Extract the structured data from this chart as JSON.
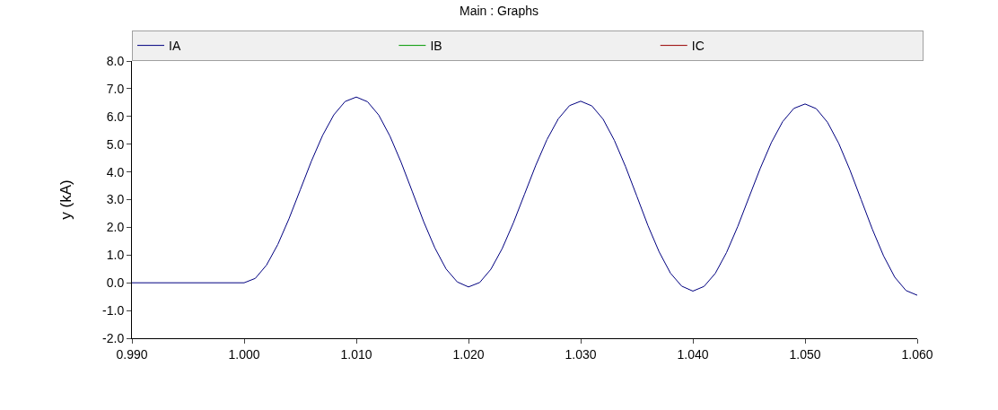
{
  "chart_data": {
    "type": "line",
    "title": "Main : Graphs",
    "ylabel": "y (kA)",
    "x": [
      0.99,
      1.0,
      1.001,
      1.002,
      1.003,
      1.004,
      1.005,
      1.006,
      1.007,
      1.008,
      1.009,
      1.01,
      1.011,
      1.012,
      1.013,
      1.014,
      1.015,
      1.016,
      1.017,
      1.018,
      1.019,
      1.02,
      1.021,
      1.022,
      1.023,
      1.024,
      1.025,
      1.026,
      1.027,
      1.028,
      1.029,
      1.03,
      1.031,
      1.032,
      1.033,
      1.034,
      1.035,
      1.036,
      1.037,
      1.038,
      1.039,
      1.04,
      1.041,
      1.042,
      1.043,
      1.044,
      1.045,
      1.046,
      1.047,
      1.048,
      1.049,
      1.05,
      1.051,
      1.052,
      1.053,
      1.054,
      1.055,
      1.056,
      1.057,
      1.058,
      1.059,
      1.06
    ],
    "series": [
      {
        "name": "IA",
        "color": "#000080",
        "values": [
          0,
          0,
          0.16,
          0.64,
          1.38,
          2.31,
          3.35,
          4.39,
          5.32,
          6.06,
          6.54,
          6.7,
          6.53,
          6.05,
          5.29,
          4.34,
          3.28,
          2.21,
          1.26,
          0.5,
          0.03,
          -0.15,
          0.01,
          0.49,
          1.23,
          2.16,
          3.2,
          4.24,
          5.17,
          5.91,
          6.39,
          6.55,
          6.38,
          5.9,
          5.14,
          4.19,
          3.13,
          2.06,
          1.11,
          0.35,
          -0.12,
          -0.3,
          -0.13,
          0.34,
          1.09,
          2.03,
          3.08,
          4.12,
          5.06,
          5.81,
          6.29,
          6.45,
          6.28,
          5.79,
          5.03,
          4.07,
          3.0,
          1.93,
          0.97,
          0.2,
          -0.28,
          -0.45
        ]
      },
      {
        "name": "IB",
        "color": "#009900",
        "values": [
          null,
          null,
          null,
          null,
          null,
          null,
          null,
          null,
          null,
          null,
          null,
          null,
          null,
          null,
          null,
          null,
          null,
          null,
          null,
          null,
          null,
          null,
          null,
          null,
          null,
          null,
          null,
          null,
          null,
          null,
          null,
          null,
          null,
          null,
          null,
          null,
          null,
          null,
          null,
          null,
          null,
          null,
          null,
          null,
          null,
          null,
          null,
          null,
          null,
          null,
          null,
          null,
          null,
          null,
          null,
          null,
          null,
          null,
          null,
          null,
          null,
          null
        ]
      },
      {
        "name": "IC",
        "color": "#990000",
        "values": [
          null,
          null,
          null,
          null,
          null,
          null,
          null,
          null,
          null,
          null,
          null,
          null,
          null,
          null,
          null,
          null,
          null,
          null,
          null,
          null,
          null,
          null,
          null,
          null,
          null,
          null,
          null,
          null,
          null,
          null,
          null,
          null,
          null,
          null,
          null,
          null,
          null,
          null,
          null,
          null,
          null,
          null,
          null,
          null,
          null,
          null,
          null,
          null,
          null,
          null,
          null,
          null,
          null,
          null,
          null,
          null,
          null,
          null,
          null,
          null,
          null,
          null
        ]
      }
    ],
    "xlim": [
      0.99,
      1.06
    ],
    "xticks": [
      {
        "value": 0.99,
        "label": "0.990"
      },
      {
        "value": 1.0,
        "label": "1.000"
      },
      {
        "value": 1.01,
        "label": "1.010"
      },
      {
        "value": 1.02,
        "label": "1.020"
      },
      {
        "value": 1.03,
        "label": "1.030"
      },
      {
        "value": 1.04,
        "label": "1.040"
      },
      {
        "value": 1.05,
        "label": "1.050"
      },
      {
        "value": 1.06,
        "label": "1.060"
      }
    ],
    "ylim": [
      -2,
      8
    ],
    "yticks": [
      {
        "value": -2,
        "label": "-2.0"
      },
      {
        "value": -1,
        "label": "-1.0"
      },
      {
        "value": 0,
        "label": "0.0"
      },
      {
        "value": 1,
        "label": "1.0"
      },
      {
        "value": 2,
        "label": "2.0"
      },
      {
        "value": 3,
        "label": "3.0"
      },
      {
        "value": 4,
        "label": "4.0"
      },
      {
        "value": 5,
        "label": "5.0"
      },
      {
        "value": 6,
        "label": "6.0"
      },
      {
        "value": 7,
        "label": "7.0"
      },
      {
        "value": 8,
        "label": "8.0"
      }
    ],
    "legend": "top",
    "marker": "none",
    "line_style": "solid"
  }
}
